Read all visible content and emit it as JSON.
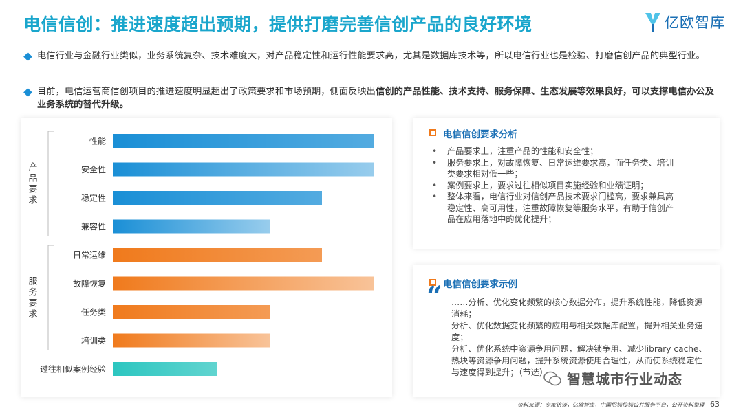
{
  "title": "电信信创：推进速度超出预期，提供打磨完善信创产品的良好环境",
  "logo": {
    "text": "亿欧智库",
    "colors": [
      "#1a6fb5",
      "#4fc3e8"
    ]
  },
  "bullets": [
    {
      "text": "电信行业与金融行业类似，业务系统复杂、技术难度大，对产品稳定性和运行性能要求高，尤其是数据库技术等，所以电信行业也是检验、打磨信创产品的典型行业。"
    },
    {
      "text_plain": "目前，电信运营商信创项目的推进速度明显超出了政策要求和市场预期，侧面反映出",
      "text_bold": "信创的产品性能、技术支持、服务保障、生态发展等效果良好，可以支撑电信办公及业务系统的替代升级。"
    }
  ],
  "chart_data": {
    "type": "bar",
    "orientation": "horizontal",
    "groups": [
      {
        "name": "产品要求",
        "categories": [
          "性能",
          "安全性",
          "稳定性",
          "兼容性"
        ],
        "values": [
          5,
          5,
          4,
          3
        ],
        "color": "#1a8fd6"
      },
      {
        "name": "服务要求",
        "categories": [
          "日常运维",
          "故障恢复",
          "任务类",
          "培训类"
        ],
        "values": [
          4,
          5,
          3,
          3
        ],
        "color": "#f07a1c"
      },
      {
        "name": "",
        "categories": [
          "过往相似案例经验"
        ],
        "values": [
          2
        ],
        "color": "#2cc6c0"
      }
    ],
    "categories": [
      "性能",
      "安全性",
      "稳定性",
      "兼容性",
      "日常运维",
      "故障恢复",
      "任务类",
      "培训类",
      "过往相似案例经验"
    ],
    "values": [
      5,
      5,
      4,
      3,
      4,
      5,
      3,
      3,
      2
    ],
    "xlim": [
      0,
      5
    ],
    "grid": false,
    "legend": "none"
  },
  "analysis": {
    "title": "电信信创要求分析",
    "items": [
      "产品要求上，注重产品的性能和安全性；",
      "服务要求上，对故障恢复、日常运维要求高，而任务类、培训类要求相对低一些；",
      "案例要求上，要求过往相似项目实施经验和业绩证明；",
      "整体来看，电信行业对信创产品技术要求门槛高，要求兼具高稳定性、高可用性，注重故障恢复等服务水平，有助于信创产品在应用落地中的优化提升；"
    ]
  },
  "example": {
    "title": "电信信创要求示例",
    "quote": "“",
    "lines": [
      "……分析、优化变化频繁的核心数据分布，提升系统性能，降低资源消耗；",
      "分析、优化数据变化频繁的应用与相关数据库配置，提升相关业务速度；",
      "分析、优化系统中资源争用问题，解决锁争用、减少library cache、热块等资源争用问题，提升系统资源使用合理性，从而使系统稳定性与速度得到提升；（节选）"
    ]
  },
  "watermark": "智慧城市行业动态",
  "source": "资料来源：专家访谈，亿欧智库，中国招标投标公共服务平台，公开资料整理",
  "page_number": "63"
}
